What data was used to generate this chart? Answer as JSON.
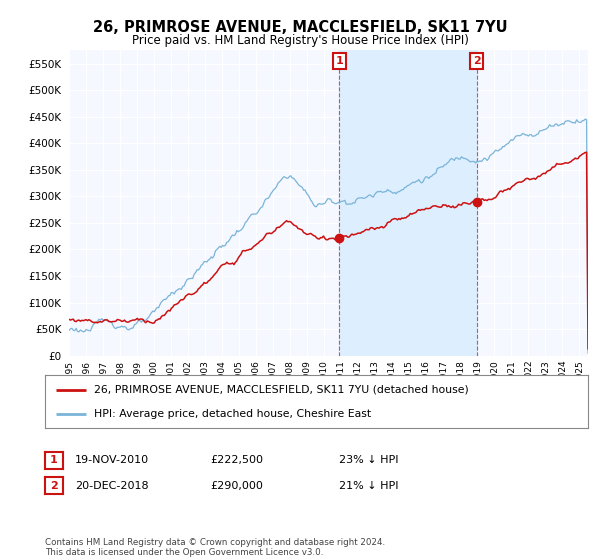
{
  "title": "26, PRIMROSE AVENUE, MACCLESFIELD, SK11 7YU",
  "subtitle": "Price paid vs. HM Land Registry's House Price Index (HPI)",
  "legend_line1": "26, PRIMROSE AVENUE, MACCLESFIELD, SK11 7YU (detached house)",
  "legend_line2": "HPI: Average price, detached house, Cheshire East",
  "annotation1_date": "19-NOV-2010",
  "annotation1_price": "£222,500",
  "annotation1_hpi": "23% ↓ HPI",
  "annotation2_date": "20-DEC-2018",
  "annotation2_price": "£290,000",
  "annotation2_hpi": "21% ↓ HPI",
  "footer": "Contains HM Land Registry data © Crown copyright and database right 2024.\nThis data is licensed under the Open Government Licence v3.0.",
  "hpi_color": "#7ab4d8",
  "price_color": "#cc1111",
  "highlight_color": "#ddeeff",
  "background_color": "#ffffff",
  "plot_bg_color": "#f5f8ff",
  "grid_color": "#cccccc",
  "ylim": [
    0,
    575000
  ],
  "yticks": [
    0,
    50000,
    100000,
    150000,
    200000,
    250000,
    300000,
    350000,
    400000,
    450000,
    500000,
    550000
  ],
  "sale1_x": 2010.88,
  "sale1_y": 222500,
  "sale2_x": 2018.96,
  "sale2_y": 290000,
  "xmin": 1995.0,
  "xmax": 2025.5
}
